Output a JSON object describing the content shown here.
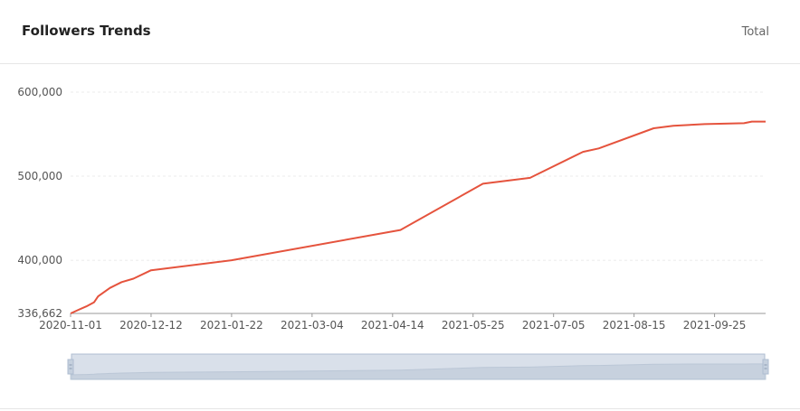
{
  "header": {
    "title": "Followers Trends",
    "total_label": "Total"
  },
  "colors": {
    "line": "#e5533d",
    "grid": "#ebebeb",
    "axis": "#999999",
    "slider_fill": "#d9e0ea",
    "slider_border": "#aebdd0",
    "slider_handle": "#c5d0de"
  },
  "chart_data": {
    "type": "line",
    "title": "",
    "xlabel": "",
    "ylabel": "",
    "ylim": [
      336662,
      600000
    ],
    "ytick_labels": [
      "336,662",
      "400,000",
      "500,000",
      "600,000"
    ],
    "ytick_values": [
      336662,
      400000,
      500000,
      600000
    ],
    "xtick_labels": [
      "2020-11-01",
      "2020-12-12",
      "2021-01-22",
      "2021-03-04",
      "2021-04-14",
      "2021-05-25",
      "2021-07-05",
      "2021-08-15",
      "2021-09-25"
    ],
    "xlim": [
      "2020-11-01",
      "2021-10-21"
    ],
    "grid": true,
    "series": [
      {
        "x": [
          "2020-11-01",
          "2020-11-05",
          "2020-11-09",
          "2020-11-13",
          "2020-11-15",
          "2020-11-18",
          "2020-11-21",
          "2020-11-27",
          "2020-12-03",
          "2020-12-12",
          "2021-01-22",
          "2021-04-18",
          "2021-05-30",
          "2021-06-23",
          "2021-07-20",
          "2021-07-28",
          "2021-08-25",
          "2021-09-04",
          "2021-09-20",
          "2021-10-10",
          "2021-10-14",
          "2021-10-21"
        ],
        "values": [
          336662,
          341000,
          345000,
          350000,
          357000,
          362000,
          367000,
          374000,
          378000,
          388000,
          400000,
          436000,
          491000,
          498000,
          529000,
          533000,
          557000,
          560000,
          562000,
          563000,
          565000,
          565000
        ]
      }
    ],
    "slider": {
      "start": 0,
      "end": 100
    }
  }
}
